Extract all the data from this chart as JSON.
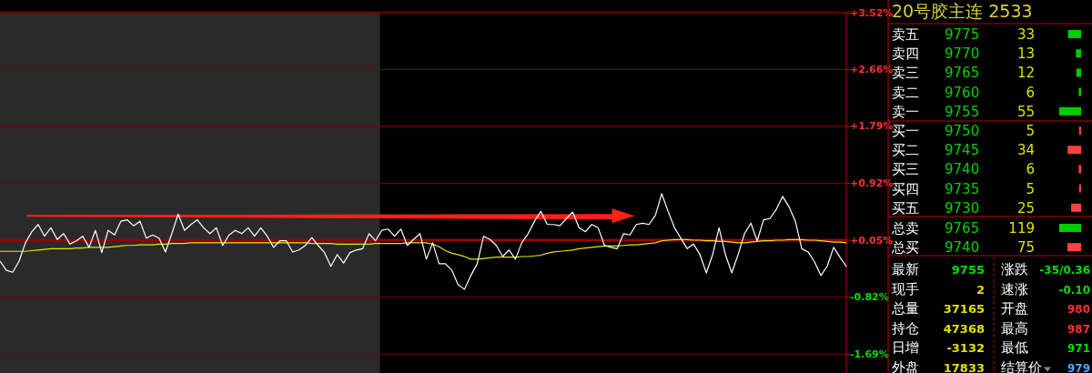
{
  "chart_data": [
    {
      "type": "line",
      "categories": [
        null,
        null,
        null,
        null,
        null,
        null,
        null,
        null,
        null,
        null,
        null,
        null,
        null,
        null,
        null,
        null,
        null,
        null,
        null,
        null,
        null,
        null,
        null,
        null,
        null,
        null,
        null,
        null,
        null,
        null,
        null,
        null,
        null,
        null,
        null,
        null,
        null,
        null,
        null,
        null,
        null,
        null,
        null,
        null,
        null,
        null,
        null,
        null,
        null,
        null,
        null,
        null,
        null,
        null,
        null,
        null,
        null,
        null,
        null,
        null,
        null,
        null,
        null,
        null,
        null,
        null,
        null,
        null,
        null,
        null,
        null,
        null,
        null,
        null,
        null,
        null,
        null,
        null,
        null,
        null,
        null,
        null,
        null,
        null,
        null,
        null,
        null,
        null,
        null,
        null,
        null,
        null,
        null,
        null,
        null,
        null,
        null,
        null,
        null,
        null,
        null,
        null,
        null,
        null,
        null,
        null,
        null,
        null,
        null,
        null,
        null,
        null,
        null,
        null,
        null,
        null,
        null,
        null,
        null,
        null,
        null,
        null,
        null,
        null,
        null,
        null,
        null,
        null,
        null,
        null,
        null,
        null,
        null,
        null
      ],
      "ylim": [
        -1.98,
        3.54
      ],
      "yticks": [
        {
          "value": 3.52,
          "label": "+3.52%"
        },
        {
          "value": 2.66,
          "label": "+2.66%"
        },
        {
          "value": 1.79,
          "label": "+1.79%"
        },
        {
          "value": 0.92,
          "label": "+0.92%"
        },
        {
          "value": 0.05,
          "label": "+0.05%"
        },
        {
          "value": -0.82,
          "label": "-0.82%"
        },
        {
          "value": -1.69,
          "label": "-1.69%"
        }
      ],
      "tick_labels": "y",
      "grid": "y",
      "ref_lines": [
        {
          "axis": "y",
          "value": 0.05,
          "color": "#9a0000"
        }
      ],
      "series": [
        {
          "color": "#ffffff",
          "values": [
            -0.27,
            -0.41,
            -0.44,
            -0.27,
            0.01,
            0.18,
            0.29,
            0.11,
            0.24,
            0.06,
            0.15,
            -0.01,
            0.04,
            0.11,
            -0.06,
            0.2,
            -0.14,
            0.2,
            0.13,
            0.34,
            0.36,
            0.27,
            0.34,
            0.08,
            0.13,
            0.08,
            -0.13,
            0.15,
            0.45,
            0.2,
            0.29,
            0.36,
            0.24,
            0.15,
            0.24,
            -0.03,
            0.13,
            0.2,
            0.15,
            0.24,
            0.11,
            0.24,
            0.11,
            -0.06,
            0.04,
            0.04,
            -0.13,
            -0.1,
            -0.03,
            0.09,
            -0.03,
            -0.14,
            -0.35,
            -0.17,
            -0.3,
            -0.14,
            -0.1,
            -0.08,
            0.15,
            0.04,
            0.2,
            0.22,
            0.11,
            0.22,
            -0.03,
            0.06,
            0.15,
            -0.24,
            0.01,
            -0.31,
            -0.31,
            -0.41,
            -0.63,
            -0.7,
            -0.49,
            -0.31,
            0.11,
            0.06,
            -0.03,
            -0.2,
            -0.1,
            -0.24,
            0.01,
            0.15,
            0.34,
            0.49,
            0.29,
            0.29,
            0.27,
            0.38,
            0.48,
            0.24,
            0.18,
            0.29,
            0.24,
            -0.03,
            -0.06,
            -0.08,
            0.15,
            0.13,
            0.29,
            0.31,
            0.29,
            0.43,
            0.76,
            0.49,
            0.24,
            0.08,
            -0.08,
            -0.01,
            -0.17,
            -0.45,
            -0.17,
            0.24,
            -0.17,
            -0.45,
            -0.17,
            0.15,
            0.31,
            0.04,
            0.36,
            0.38,
            0.52,
            0.72,
            0.56,
            0.34,
            -0.08,
            -0.13,
            -0.28,
            -0.49,
            -0.35,
            -0.06,
            -0.21,
            -0.35
          ]
        },
        {
          "color": "#e6e600",
          "values": [
            -0.12,
            -0.12,
            -0.12,
            -0.12,
            -0.12,
            -0.11,
            -0.1,
            -0.09,
            -0.08,
            -0.08,
            -0.08,
            -0.08,
            -0.07,
            -0.07,
            -0.06,
            -0.06,
            -0.06,
            -0.06,
            -0.05,
            -0.04,
            -0.03,
            -0.03,
            -0.02,
            -0.02,
            -0.02,
            -0.01,
            -0.01,
            0.0,
            0.0,
            0.0,
            0.01,
            0.01,
            0.01,
            0.01,
            0.01,
            0.01,
            0.01,
            0.01,
            0.01,
            0.01,
            0.01,
            0.01,
            0.01,
            0.01,
            0.01,
            0.01,
            0.01,
            0.01,
            0.01,
            0.0,
            0.0,
            0.0,
            0.0,
            -0.01,
            -0.01,
            -0.01,
            -0.01,
            -0.01,
            -0.01,
            0.0,
            0.0,
            0.0,
            0.0,
            0.0,
            0.01,
            0.01,
            0.01,
            0.01,
            -0.01,
            -0.05,
            -0.11,
            -0.15,
            -0.17,
            -0.2,
            -0.24,
            -0.24,
            -0.23,
            -0.22,
            -0.21,
            -0.21,
            -0.21,
            -0.21,
            -0.2,
            -0.2,
            -0.19,
            -0.18,
            -0.15,
            -0.13,
            -0.12,
            -0.11,
            -0.1,
            -0.08,
            -0.07,
            -0.06,
            -0.05,
            -0.04,
            -0.04,
            -0.04,
            -0.03,
            -0.02,
            -0.02,
            -0.01,
            0.0,
            0.01,
            0.04,
            0.05,
            0.06,
            0.06,
            0.06,
            0.05,
            0.05,
            0.04,
            0.04,
            0.03,
            0.03,
            0.02,
            0.01,
            0.01,
            0.02,
            0.03,
            0.04,
            0.04,
            0.05,
            0.05,
            0.06,
            0.06,
            0.06,
            0.05,
            0.05,
            0.04,
            0.03,
            0.02,
            0.02,
            0.01
          ]
        }
      ]
    },
    {
      "type": "bar",
      "orientation": "horizontal",
      "title": "20号胶主连  2533",
      "categories": [
        "卖五",
        "卖四",
        "卖三",
        "卖二",
        "卖一",
        "买一",
        "买二",
        "买三",
        "买四",
        "买五"
      ],
      "values": [
        33,
        13,
        12,
        6,
        55,
        5,
        34,
        6,
        5,
        25
      ],
      "colors": [
        "#00cc00",
        "#00cc00",
        "#00cc00",
        "#00cc00",
        "#00cc00",
        "#ff4040",
        "#ff4040",
        "#ff4040",
        "#ff4040",
        "#ff4040"
      ],
      "data_labels": true,
      "annotations": [
        "9775",
        "9770",
        "9765",
        "9760",
        "9755",
        "9750",
        "9745",
        "9740",
        "9735",
        "9730"
      ]
    },
    {
      "type": "bar",
      "orientation": "horizontal",
      "categories": [
        "总卖",
        "总买"
      ],
      "values": [
        119,
        75
      ],
      "colors": [
        "#00cc00",
        "#ff4040"
      ],
      "data_labels": true,
      "annotations": [
        "9765",
        "9740"
      ]
    },
    {
      "type": "other",
      "annotations": [
        "最新",
        "9755",
        "涨跌",
        "-35/0.36",
        "现手",
        "2",
        "速涨",
        "-0.10",
        "总量",
        "37165",
        "开盘",
        "980",
        "持仓",
        "47368",
        "最高",
        "987",
        "日增",
        "-3132",
        "最低",
        "971",
        "外盘",
        "17833",
        "结算价",
        "979"
      ]
    }
  ]
}
